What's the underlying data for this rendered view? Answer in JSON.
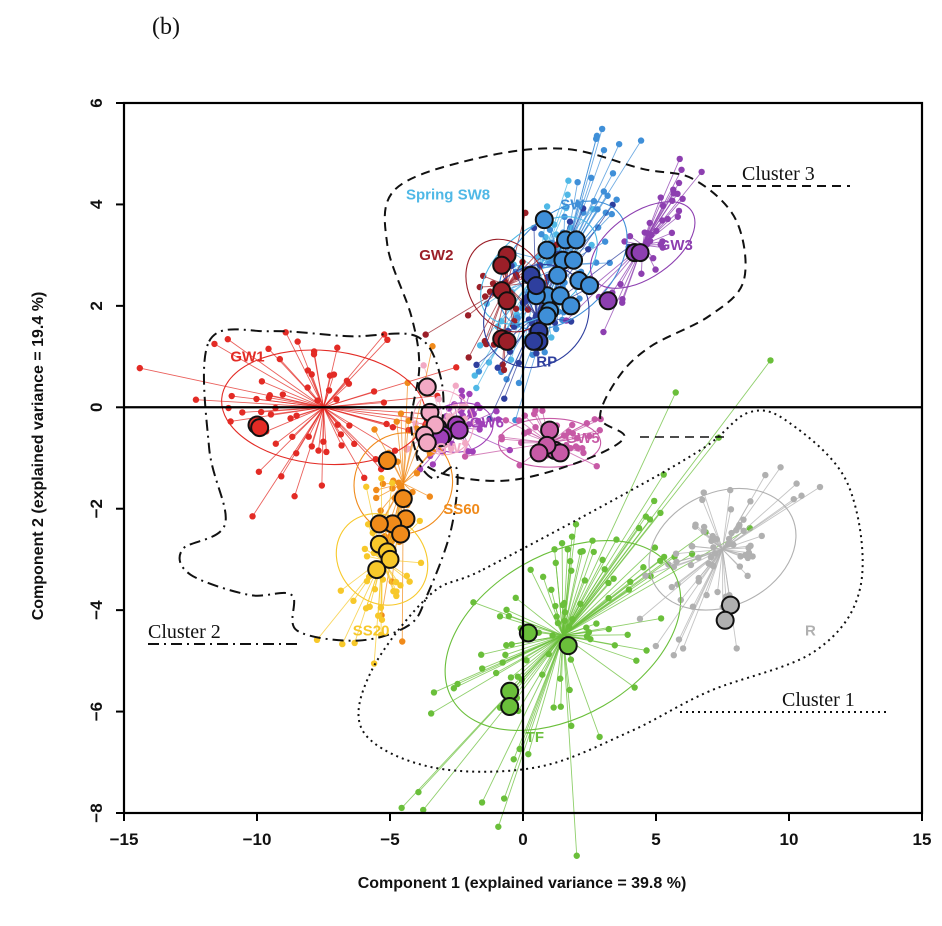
{
  "figure_label": "(b)",
  "chart_data": {
    "type": "scatter",
    "xlabel": "Component 1 (explained variance = 39.8 %)",
    "ylabel": "Component 2 (explained variance = 19.4 %)",
    "xlim": [
      -15,
      15
    ],
    "ylim": [
      -8,
      6
    ],
    "xticks": [
      -15,
      -10,
      -5,
      0,
      5,
      10,
      15
    ],
    "yticks": [
      -8,
      -6,
      -4,
      -2,
      0,
      2,
      4,
      6
    ],
    "reference_lines": {
      "x": 0,
      "y": 0
    },
    "groups": [
      {
        "name": "Spring SW8",
        "color": "#4fb8e6",
        "label_pos": [
          -4.4,
          4.1
        ],
        "center": [
          0.6,
          2.7
        ],
        "centroids": []
      },
      {
        "name": "SW",
        "color": "#3f8fd8",
        "label_pos": [
          1.4,
          3.9
        ],
        "center": [
          1.5,
          2.8
        ],
        "centroids": [
          [
            0.8,
            3.7
          ],
          [
            0.9,
            3.1
          ],
          [
            1.6,
            3.3
          ],
          [
            2.0,
            3.3
          ],
          [
            1.5,
            2.9
          ],
          [
            1.9,
            2.9
          ],
          [
            1.3,
            2.6
          ],
          [
            2.1,
            2.5
          ],
          [
            0.9,
            2.2
          ],
          [
            1.4,
            2.2
          ],
          [
            2.5,
            2.4
          ],
          [
            1.8,
            2.0
          ],
          [
            1.0,
            1.9
          ],
          [
            0.9,
            1.8
          ],
          [
            0.5,
            2.2
          ]
        ]
      },
      {
        "name": "GW3",
        "color": "#8d3fb0",
        "label_pos": [
          5.1,
          3.1
        ],
        "center": [
          4.5,
          3.2
        ],
        "centroids": [
          [
            4.2,
            3.05
          ],
          [
            4.4,
            3.05
          ],
          [
            3.2,
            2.1
          ]
        ]
      },
      {
        "name": "GW2",
        "color": "#9b1f28",
        "label_pos": [
          -3.9,
          2.9
        ],
        "center": [
          -0.6,
          2.4
        ],
        "centroids": [
          [
            -0.6,
            3.0
          ],
          [
            -0.8,
            2.8
          ],
          [
            -0.8,
            2.3
          ],
          [
            -0.6,
            2.1
          ],
          [
            -0.8,
            1.35
          ],
          [
            -0.6,
            1.3
          ]
        ]
      },
      {
        "name": "RP",
        "color": "#2e3f9e",
        "label_pos": [
          0.5,
          0.8
        ],
        "center": [
          0.5,
          1.8
        ],
        "centroids": [
          [
            0.3,
            2.6
          ],
          [
            0.5,
            2.4
          ],
          [
            0.6,
            1.5
          ],
          [
            0.6,
            1.3
          ],
          [
            0.4,
            1.3
          ]
        ]
      },
      {
        "name": "GW1",
        "color": "#e32b25",
        "label_pos": [
          -11.0,
          0.9
        ],
        "center": [
          -7.5,
          0.0
        ],
        "centroids": [
          [
            -10.0,
            -0.35
          ],
          [
            -9.9,
            -0.4
          ]
        ]
      },
      {
        "name": "GW6",
        "color": "#a040b8",
        "label_pos": [
          -2.0,
          -0.4
        ],
        "center": [
          -2.4,
          -0.4
        ],
        "centroids": [
          [
            -3.2,
            -0.4
          ],
          [
            -2.5,
            -0.35
          ],
          [
            -2.4,
            -0.45
          ],
          [
            -3.0,
            -0.55
          ],
          [
            -3.1,
            -0.6
          ]
        ]
      },
      {
        "name": "GW7",
        "color": "#f2a9c4",
        "label_pos": [
          -3.3,
          -0.9
        ],
        "center": [
          -3.0,
          -0.3
        ],
        "centroids": [
          [
            -3.6,
            0.4
          ],
          [
            -3.5,
            -0.1
          ],
          [
            -3.3,
            -0.35
          ],
          [
            -3.7,
            -0.55
          ],
          [
            -3.6,
            -0.7
          ]
        ]
      },
      {
        "name": "GW5",
        "color": "#c75aa6",
        "label_pos": [
          1.6,
          -0.7
        ],
        "center": [
          1.0,
          -0.7
        ],
        "centroids": [
          [
            1.0,
            -0.45
          ],
          [
            1.2,
            -0.85
          ],
          [
            1.4,
            -0.9
          ],
          [
            0.9,
            -0.75
          ],
          [
            0.6,
            -0.9
          ]
        ]
      },
      {
        "name": "SS60",
        "color": "#f08a1a",
        "label_pos": [
          -3.0,
          -2.1
        ],
        "center": [
          -4.5,
          -1.5
        ],
        "centroids": [
          [
            -5.1,
            -1.05
          ],
          [
            -4.5,
            -1.8
          ],
          [
            -4.4,
            -2.2
          ],
          [
            -4.9,
            -2.3
          ],
          [
            -5.4,
            -2.3
          ],
          [
            -4.6,
            -2.5
          ]
        ]
      },
      {
        "name": "SS20",
        "color": "#f7c82a",
        "label_pos": [
          -6.4,
          -4.5
        ],
        "center": [
          -5.3,
          -3.0
        ],
        "centroids": [
          [
            -5.4,
            -2.7
          ],
          [
            -5.1,
            -2.85
          ],
          [
            -5.0,
            -3.0
          ],
          [
            -5.5,
            -3.2
          ]
        ]
      },
      {
        "name": "TF",
        "color": "#6abf3a",
        "label_pos": [
          0.1,
          -6.6
        ],
        "center": [
          1.5,
          -4.5
        ],
        "centroids": [
          [
            0.2,
            -4.45
          ],
          [
            1.7,
            -4.7
          ],
          [
            -0.5,
            -5.6
          ],
          [
            -0.5,
            -5.9
          ]
        ]
      },
      {
        "name": "R",
        "color": "#b0b0b0",
        "label_pos": [
          10.6,
          -4.5
        ],
        "center": [
          7.5,
          -2.8
        ],
        "centroids": [
          [
            7.8,
            -3.9
          ],
          [
            7.6,
            -4.2
          ]
        ]
      }
    ],
    "clusters": [
      {
        "name": "Cluster 1",
        "style": "dotted"
      },
      {
        "name": "Cluster 2",
        "style": "dash-dot"
      },
      {
        "name": "Cluster 3",
        "style": "dashed"
      }
    ]
  }
}
